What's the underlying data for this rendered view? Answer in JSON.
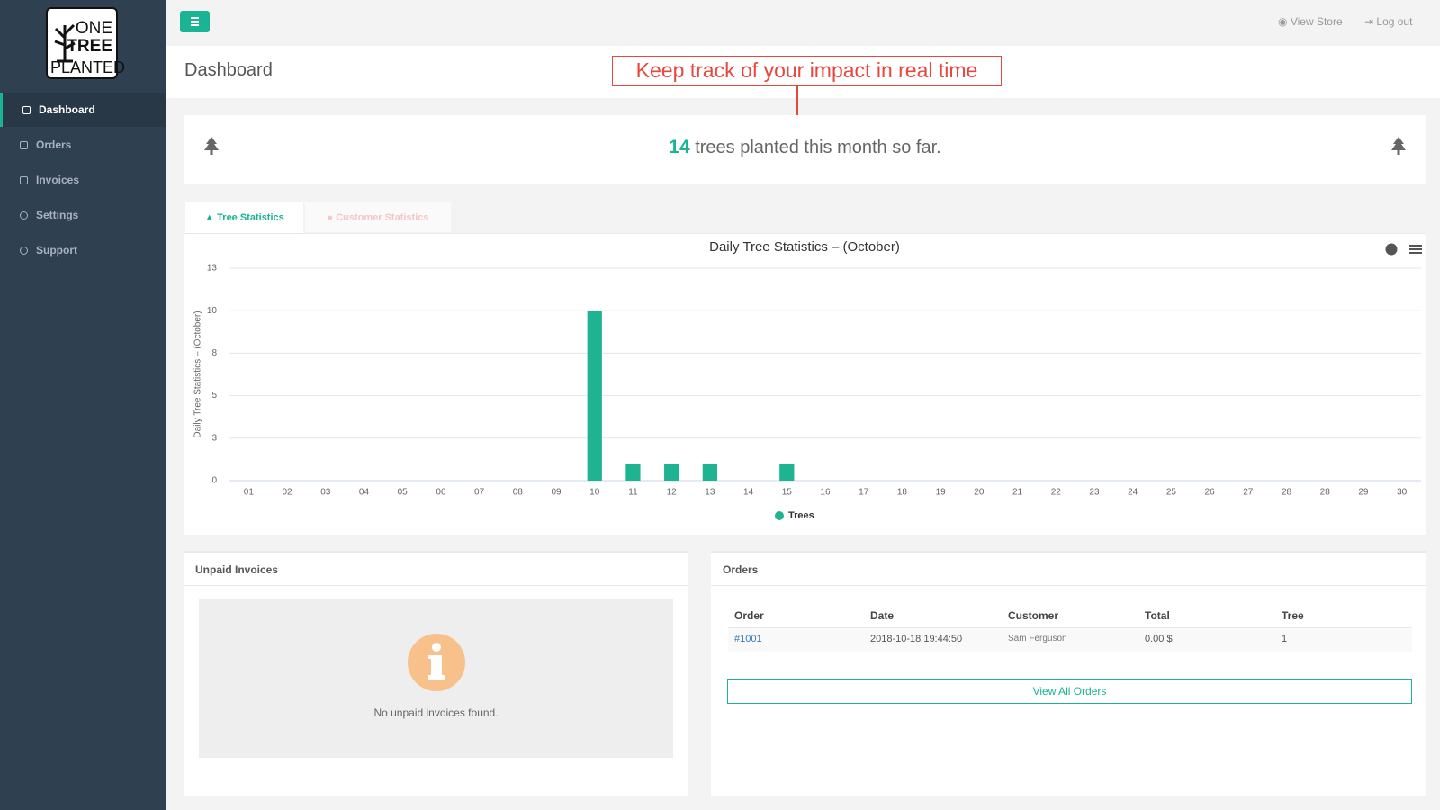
{
  "sidebar": {
    "logo": [
      "ONE",
      "TREE",
      "PLANTED"
    ],
    "nav": [
      "Dashboard",
      "Orders",
      "Invoices",
      "Settings",
      "Support"
    ]
  },
  "topbar": {
    "links": [
      "View Store",
      "Log out"
    ]
  },
  "header": {
    "title": "Dashboard",
    "annotation": "Keep track of your impact in real time"
  },
  "banner": {
    "count": 14,
    "text": "trees planted this month so far."
  },
  "tabs": [
    "Tree Statistics",
    "Customer Statistics"
  ],
  "chart_data": {
    "type": "bar",
    "title": "Daily Tree Statistics – (October)",
    "y_label": "Daily Tree Statistics – (October)",
    "categories": [
      "01",
      "02",
      "03",
      "04",
      "05",
      "06",
      "07",
      "08",
      "09",
      "10",
      "11",
      "12",
      "13",
      "14",
      "15",
      "16",
      "17",
      "18",
      "19",
      "20",
      "21",
      "22",
      "23",
      "24",
      "25",
      "26",
      "27",
      "28",
      "28",
      "29",
      "30"
    ],
    "series": [
      {
        "name": "Trees",
        "color": "#1fb491",
        "values": [
          0,
          0,
          0,
          0,
          0,
          0,
          0,
          0,
          0,
          10,
          1,
          1,
          1,
          0,
          1,
          0,
          0,
          0,
          0,
          0,
          0,
          0,
          0,
          0,
          0,
          0,
          0,
          0,
          0,
          0,
          0
        ]
      }
    ],
    "ylim": [
      0,
      12.5
    ],
    "yticks": [
      0,
      {
        "value": 2.5,
        "label": "3"
      },
      5,
      {
        "value": 7.5,
        "label": "8"
      },
      10,
      {
        "value": 12.5,
        "label": "13"
      }
    ],
    "grid": true
  },
  "invoices": {
    "title": "Unpaid Invoices",
    "message": "No unpaid invoices found."
  },
  "orders": {
    "title": "Orders",
    "columns": [
      "Order",
      "Date",
      "Customer",
      "Total",
      "Tree"
    ],
    "rows": [
      [
        "#1001",
        "2018-10-18 19:44:50",
        "Sam Ferguson",
        "0.00 $",
        "1"
      ]
    ],
    "button": "View All Orders"
  }
}
